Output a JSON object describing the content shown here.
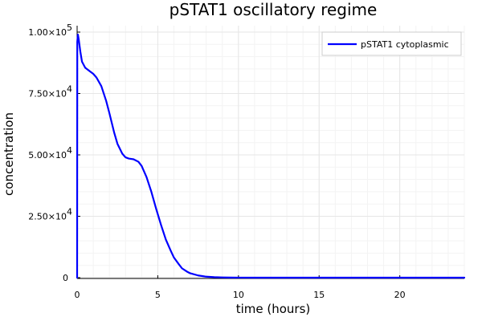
{
  "chart_data": {
    "type": "line",
    "title": "pSTAT1 oscillatory regime",
    "xlabel": "time (hours)",
    "ylabel": "concentration",
    "xlim": [
      0,
      24
    ],
    "ylim": [
      0,
      100000
    ],
    "x_ticks": [
      0,
      5,
      10,
      15,
      20
    ],
    "x_tick_labels": [
      "0",
      "5",
      "10",
      "15",
      "20"
    ],
    "y_ticks": [
      0,
      25000,
      50000,
      75000,
      100000
    ],
    "y_tick_labels": [
      {
        "mantissa": "0",
        "exponent": ""
      },
      {
        "mantissa": "2.50×10",
        "exponent": "4"
      },
      {
        "mantissa": "5.00×10",
        "exponent": "4"
      },
      {
        "mantissa": "7.50×10",
        "exponent": "4"
      },
      {
        "mantissa": "1.00×10",
        "exponent": "5"
      }
    ],
    "grid": true,
    "legend_position": "top-right",
    "series": [
      {
        "name": "pSTAT1 cytoplasmic",
        "color": "#0000ff",
        "x": [
          0,
          0.01,
          0.05,
          0.1,
          0.2,
          0.3,
          0.5,
          0.8,
          1.0,
          1.2,
          1.5,
          1.8,
          2.0,
          2.3,
          2.5,
          2.8,
          3.0,
          3.2,
          3.5,
          3.8,
          4.0,
          4.3,
          4.6,
          4.9,
          5.2,
          5.5,
          5.8,
          6.0,
          6.3,
          6.5,
          6.8,
          7.0,
          7.5,
          8.0,
          8.5,
          9.0,
          9.5,
          10.0,
          11.0,
          12.0,
          14.0,
          16.0,
          18.0,
          20.0,
          22.0,
          24.0
        ],
        "y": [
          0,
          96000,
          99000,
          97000,
          92000,
          88000,
          85500,
          84000,
          83000,
          81500,
          78000,
          72000,
          67000,
          59000,
          54500,
          50500,
          49000,
          48500,
          48200,
          47200,
          45500,
          41000,
          35000,
          28000,
          21500,
          15500,
          11000,
          8200,
          5500,
          3800,
          2500,
          1800,
          900,
          400,
          200,
          100,
          50,
          20,
          0,
          0,
          0,
          0,
          0,
          0,
          0,
          0
        ]
      }
    ]
  }
}
